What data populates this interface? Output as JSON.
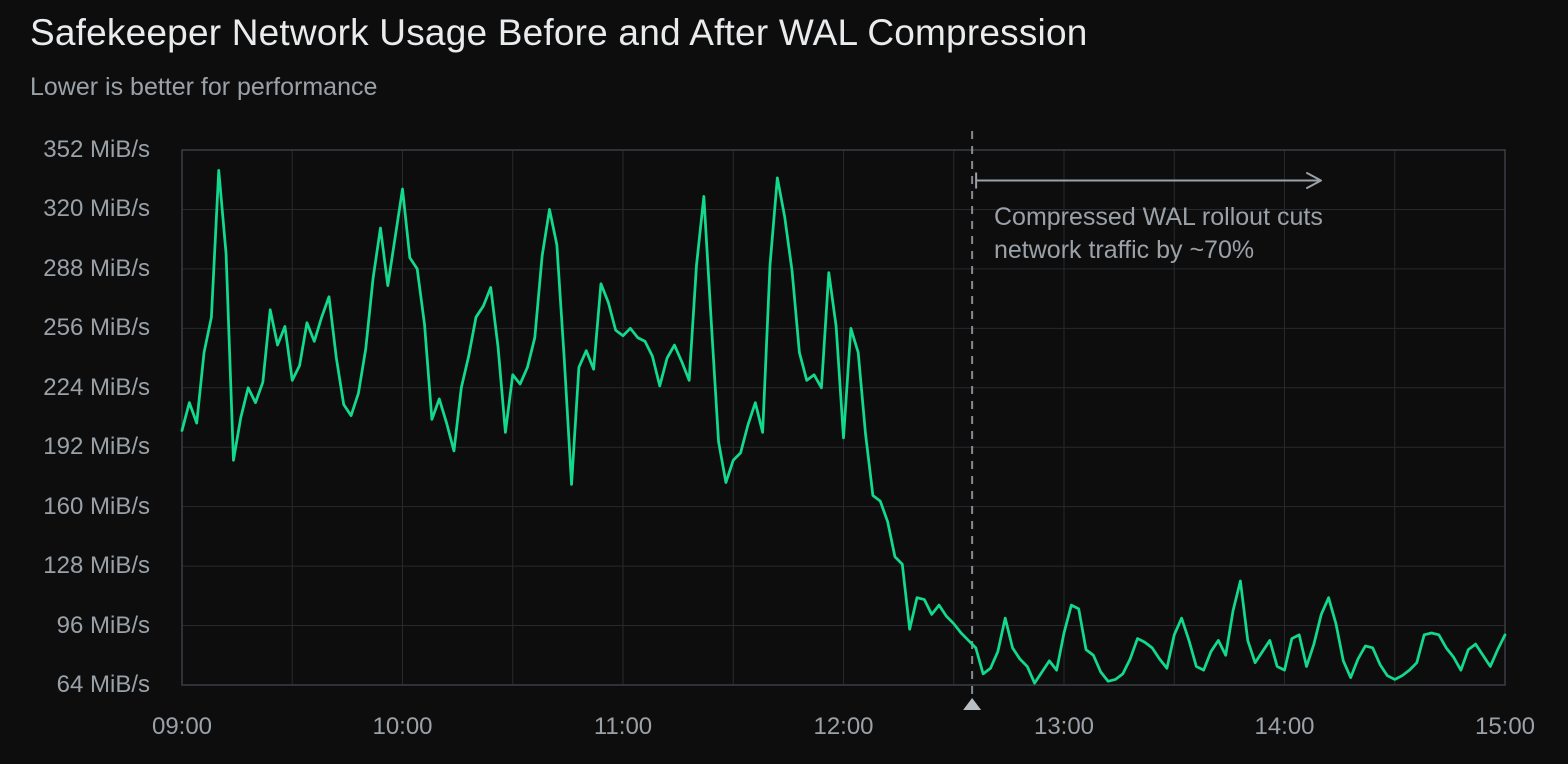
{
  "header": {
    "title": "Safekeeper Network Usage Before and After WAL Compression",
    "subtitle": "Lower is better for performance"
  },
  "y_axis": {
    "tick_labels": [
      "352 MiB/s",
      "320 MiB/s",
      "288 MiB/s",
      "256 MiB/s",
      "224 MiB/s",
      "192 MiB/s",
      "160 MiB/s",
      "128 MiB/s",
      "96 MiB/s",
      "64 MiB/s"
    ],
    "tick_values": [
      352,
      320,
      288,
      256,
      224,
      192,
      160,
      128,
      96,
      64
    ]
  },
  "x_axis": {
    "tick_labels": [
      "09:00",
      "10:00",
      "11:00",
      "12:00",
      "13:00",
      "14:00",
      "15:00"
    ],
    "tick_hours": [
      9,
      10,
      11,
      12,
      13,
      14,
      15
    ]
  },
  "annotation": {
    "line1": "Compressed WAL rollout cuts",
    "line2": "network traffic by ~70%",
    "rollout_time": "12:35"
  },
  "colors": {
    "background": "#0d0d0e",
    "line": "#12d98c",
    "grid": "#27292c",
    "border": "#3a3e43",
    "text_primary": "#e9ebed",
    "text_secondary": "#9aa1a7",
    "annotation_gray": "#9aa1a7",
    "marker_triangle": "#b9bfc5"
  },
  "chart_data": {
    "type": "line",
    "title": "Safekeeper Network Usage Before and After WAL Compression",
    "subtitle": "Lower is better for performance",
    "xlabel": "",
    "ylabel": "MiB/s",
    "ylim": [
      64,
      352
    ],
    "y_gridline_step": 32,
    "x_range": [
      "09:00",
      "15:00"
    ],
    "x_gridline_step_minutes": 30,
    "grid": true,
    "legend": false,
    "x_start": "09:00",
    "x_step_minutes": 2,
    "series": [
      {
        "name": "Safekeeper network usage (MiB/s)",
        "values": [
          201,
          216,
          205,
          243,
          262,
          341,
          296,
          185,
          208,
          224,
          216,
          227,
          266,
          247,
          257,
          228,
          236,
          259,
          249,
          262,
          273,
          240,
          215,
          209,
          221,
          245,
          283,
          310,
          279,
          305,
          331,
          294,
          288,
          258,
          207,
          218,
          205,
          190,
          224,
          241,
          262,
          268,
          278,
          246,
          200,
          231,
          226,
          235,
          251,
          295,
          320,
          301,
          240,
          172,
          235,
          244,
          234,
          280,
          270,
          255,
          252,
          256,
          251,
          249,
          241,
          225,
          240,
          247,
          238,
          228,
          290,
          327,
          260,
          195,
          173,
          185,
          189,
          204,
          216,
          200,
          290,
          337,
          316,
          287,
          243,
          228,
          231,
          224,
          286,
          257,
          197,
          256,
          243,
          199,
          166,
          163,
          152,
          133,
          129,
          94,
          111,
          110,
          102,
          107,
          101,
          97,
          92,
          88,
          84,
          70,
          73,
          82,
          100,
          84,
          78,
          74,
          65,
          71,
          77,
          72,
          92,
          107,
          105,
          83,
          80,
          71,
          66,
          67,
          70,
          78,
          89,
          87,
          84,
          78,
          73,
          91,
          100,
          88,
          74,
          72,
          82,
          88,
          80,
          104,
          120,
          88,
          76,
          82,
          88,
          74,
          72,
          89,
          91,
          74,
          86,
          102,
          111,
          97,
          77,
          68,
          78,
          85,
          84,
          75,
          69,
          67,
          69,
          72,
          76,
          91,
          92,
          91,
          84,
          79,
          72,
          83,
          86,
          80,
          74,
          83,
          91
        ]
      }
    ],
    "annotations": [
      {
        "type": "vline",
        "x": "12:35",
        "style": "dashed",
        "marker": "triangle-up-at-axis"
      },
      {
        "type": "arrow",
        "from_x": "12:35",
        "direction": "right",
        "y_value": 336
      },
      {
        "type": "text",
        "text": "Compressed WAL rollout cuts network traffic by ~70%",
        "anchor_x": "12:41",
        "anchor_y_value": 320
      }
    ]
  }
}
